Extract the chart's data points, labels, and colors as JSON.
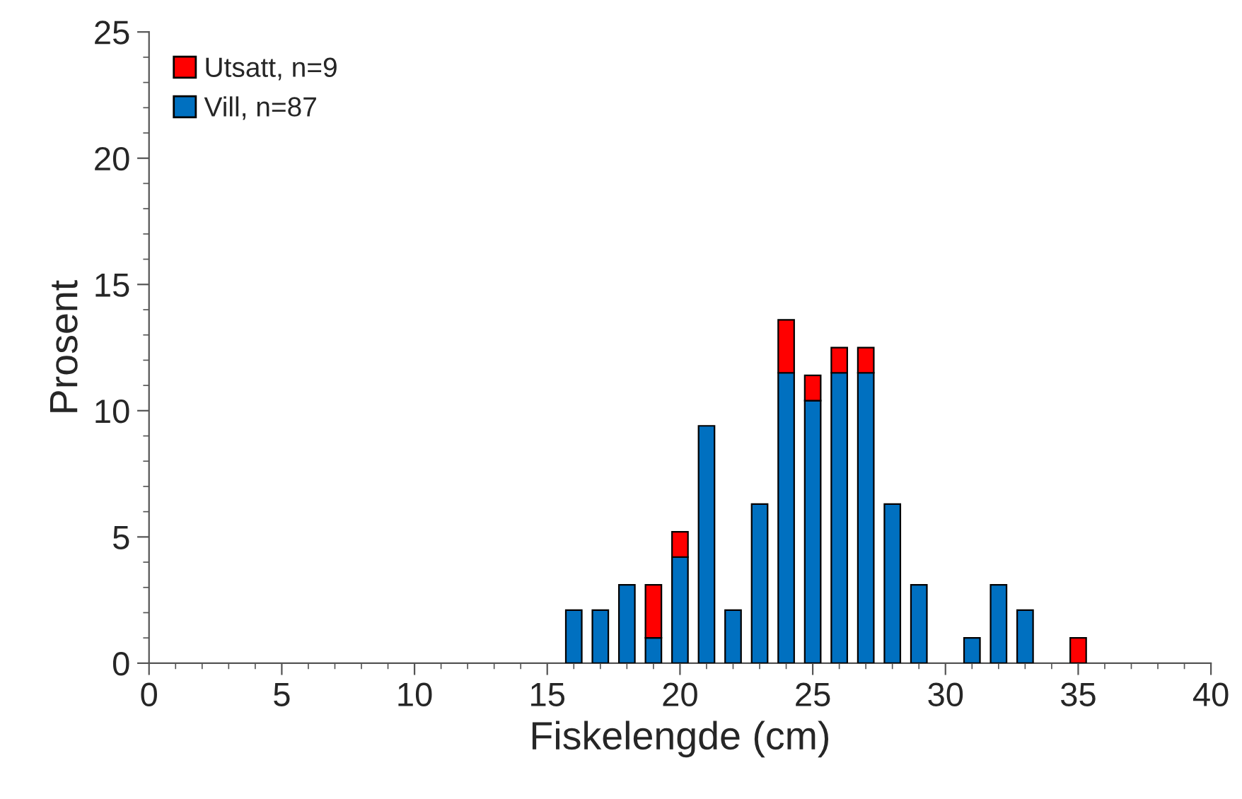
{
  "chart_data": {
    "type": "bar",
    "stacked": true,
    "xlabel": "Fiskelengde (cm)",
    "ylabel": "Prosent",
    "x": [
      16,
      17,
      18,
      19,
      20,
      21,
      22,
      23,
      24,
      25,
      26,
      27,
      28,
      29,
      30,
      31,
      32,
      33,
      34,
      35
    ],
    "series": [
      {
        "name": "Vill, n=87",
        "color": "#0070c0",
        "values": [
          2.1,
          2.1,
          3.1,
          1.0,
          4.2,
          9.4,
          2.1,
          6.3,
          11.5,
          10.4,
          11.5,
          11.5,
          6.3,
          3.1,
          null,
          1.0,
          3.1,
          2.1,
          null,
          null
        ]
      },
      {
        "name": "Utsatt, n=9",
        "color": "#ff0000",
        "values": [
          null,
          null,
          null,
          2.1,
          1.0,
          null,
          null,
          null,
          2.1,
          1.0,
          1.0,
          1.0,
          null,
          null,
          null,
          null,
          null,
          null,
          null,
          1.0
        ]
      }
    ],
    "xlim": [
      0,
      40
    ],
    "xticks": [
      0,
      5,
      10,
      15,
      20,
      25,
      30,
      35,
      40
    ],
    "ylim": [
      0,
      25
    ],
    "yticks": [
      0,
      5,
      10,
      15,
      20,
      25
    ],
    "legend": "top left",
    "grid": false
  }
}
